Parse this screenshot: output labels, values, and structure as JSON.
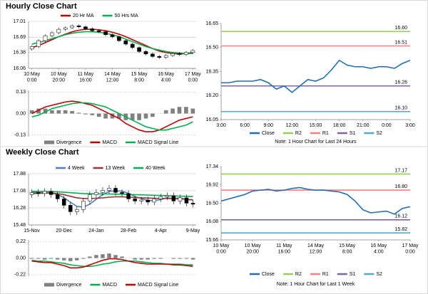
{
  "sections": [
    "Hourly Close Chart",
    "Weekly Close Chart"
  ],
  "chart_data": [
    {
      "type": "candlestick",
      "grid": true,
      "categories": [
        [
          "10 May",
          "0:00"
        ],
        null,
        null,
        null,
        [
          "10 May",
          "20:00"
        ],
        null,
        null,
        null,
        [
          "11 May",
          "16:00"
        ],
        null,
        null,
        null,
        [
          "14 May",
          "12:00"
        ],
        null,
        null,
        null,
        [
          "15 May",
          "8:00"
        ],
        null,
        null,
        null,
        [
          "16 May",
          "4:00"
        ],
        null,
        null,
        null,
        [
          "17 May",
          "0:00"
        ]
      ],
      "open": [
        16.45,
        16.5,
        16.62,
        16.72,
        16.78,
        16.85,
        16.88,
        16.92,
        16.9,
        16.86,
        16.82,
        16.8,
        16.74,
        16.7,
        16.62,
        16.55,
        16.48,
        16.4,
        16.35,
        16.3,
        16.28,
        16.32,
        16.36,
        16.34,
        16.38
      ],
      "high": [
        16.53,
        16.65,
        16.75,
        16.81,
        16.88,
        16.91,
        16.95,
        16.95,
        16.93,
        16.89,
        16.85,
        16.83,
        16.77,
        16.73,
        16.65,
        16.58,
        16.51,
        16.43,
        16.38,
        16.33,
        16.35,
        16.39,
        16.39,
        16.41,
        16.45
      ],
      "low": [
        16.42,
        16.47,
        16.59,
        16.69,
        16.75,
        16.82,
        16.85,
        16.87,
        16.83,
        16.79,
        16.77,
        16.71,
        16.67,
        16.59,
        16.52,
        16.45,
        16.37,
        16.32,
        16.27,
        16.25,
        16.25,
        16.29,
        16.31,
        16.31,
        16.35
      ],
      "close": [
        16.5,
        16.62,
        16.72,
        16.78,
        16.85,
        16.88,
        16.92,
        16.9,
        16.86,
        16.82,
        16.8,
        16.74,
        16.7,
        16.62,
        16.55,
        16.48,
        16.4,
        16.35,
        16.3,
        16.28,
        16.32,
        16.36,
        16.34,
        16.38,
        16.42
      ],
      "series": [
        {
          "name": "20 Hr MA",
          "color": "#c00000",
          "values": [
            16.48,
            16.52,
            16.58,
            16.64,
            16.7,
            16.75,
            16.8,
            16.83,
            16.85,
            16.85,
            16.84,
            16.82,
            16.79,
            16.75,
            16.7,
            16.64,
            16.58,
            16.52,
            16.46,
            16.41,
            16.38,
            16.36,
            16.35,
            16.36,
            16.38
          ]
        },
        {
          "name": "50 Hrs MA",
          "color": "#00b050",
          "values": [
            16.55,
            16.58,
            16.62,
            16.66,
            16.7,
            16.74,
            16.77,
            16.79,
            16.8,
            16.8,
            16.79,
            16.77,
            16.74,
            16.7,
            16.65,
            16.6,
            16.55,
            16.5,
            16.46,
            16.43,
            16.4,
            16.38,
            16.37,
            16.36,
            16.36
          ]
        }
      ],
      "ylim": [
        16.06,
        17.01
      ],
      "yticks": [
        16.06,
        16.38,
        16.69,
        17.01
      ]
    },
    {
      "type": "macd",
      "grid": true,
      "series": [
        {
          "name": "Divergence",
          "color": "#808080",
          "kind": "bar",
          "values": [
            0.02,
            0.03,
            0.03,
            0.02,
            0.02,
            0.02,
            0.015,
            0.005,
            -0.005,
            -0.01,
            -0.02,
            -0.03,
            -0.03,
            -0.03,
            -0.04,
            -0.04,
            -0.04,
            -0.03,
            -0.02,
            0,
            0.02,
            0.03,
            0.04,
            0.04,
            0.03
          ]
        },
        {
          "name": "MACD",
          "color": "#c00000",
          "kind": "line",
          "values": [
            0,
            0.02,
            0.04,
            0.05,
            0.06,
            0.07,
            0.075,
            0.07,
            0.06,
            0.05,
            0.03,
            0.01,
            -0.01,
            -0.03,
            -0.06,
            -0.08,
            -0.1,
            -0.11,
            -0.11,
            -0.1,
            -0.08,
            -0.06,
            -0.04,
            -0.03,
            -0.02
          ]
        },
        {
          "name": "MACD Signal Line",
          "color": "#00b050",
          "kind": "line",
          "values": [
            -0.02,
            -0.01,
            0.01,
            0.03,
            0.04,
            0.05,
            0.06,
            0.065,
            0.065,
            0.06,
            0.05,
            0.04,
            0.02,
            0,
            -0.02,
            -0.04,
            -0.06,
            -0.08,
            -0.09,
            -0.1,
            -0.1,
            -0.09,
            -0.08,
            -0.07,
            -0.05
          ]
        }
      ],
      "ylim": [
        -0.14,
        0.14
      ],
      "yticks": [
        0.13,
        {
          "value": 0,
          "label": "0.00"
        },
        -0.13
      ]
    },
    {
      "type": "line",
      "grid": false,
      "categories": [
        "3:00",
        null,
        null,
        "6:00",
        null,
        null,
        "9:00",
        null,
        null,
        "12:00",
        null,
        null,
        "15:00",
        null,
        null,
        "18:00",
        null,
        null,
        "21:00",
        null,
        null,
        "0:00",
        null,
        null,
        "3:00"
      ],
      "series": [
        {
          "name": "Close",
          "color": "#1f6fb5",
          "values": [
            16.28,
            16.28,
            16.29,
            16.29,
            16.29,
            16.3,
            16.28,
            16.24,
            16.26,
            16.22,
            16.26,
            16.3,
            16.29,
            16.31,
            16.36,
            16.42,
            16.39,
            16.38,
            16.38,
            16.37,
            16.38,
            16.38,
            16.37,
            16.4,
            16.42
          ]
        }
      ],
      "levels": [
        {
          "name": "R2",
          "color": "#92d050",
          "value": 16.6,
          "label": "16.60"
        },
        {
          "name": "R1",
          "color": "#ff7c80",
          "value": 16.51,
          "label": "16.51"
        },
        {
          "name": "S1",
          "color": "#8064a2",
          "value": 16.26,
          "label": "16.26"
        },
        {
          "name": "S2",
          "color": "#4bacc6",
          "value": 16.1,
          "label": "16.10"
        }
      ],
      "note": "Note: 1 Hour Chart for Last 24 Hours",
      "ylim": [
        16.05,
        16.65
      ],
      "yticks": [
        16.05,
        {
          "value": 16.2,
          "label": "16.20"
        },
        16.35,
        {
          "value": 16.5,
          "label": "16.50"
        },
        16.65
      ]
    },
    {
      "type": "candlestick",
      "grid": true,
      "categories": [
        "15-Nov",
        null,
        null,
        null,
        null,
        "20-Dec",
        null,
        null,
        null,
        null,
        "24-Jan",
        null,
        null,
        null,
        null,
        "28-Feb",
        null,
        null,
        null,
        null,
        "4-Apr",
        null,
        null,
        null,
        null,
        "9-May"
      ],
      "open": [
        16.9,
        17.0,
        16.95,
        17.05,
        16.9,
        16.7,
        16.4,
        16.1,
        16.2,
        16.6,
        16.9,
        17.0,
        17.1,
        17.2,
        17.0,
        16.95,
        16.7,
        16.6,
        16.65,
        16.55,
        16.7,
        16.8,
        16.85,
        16.6,
        16.75,
        16.5
      ],
      "high": [
        17.15,
        17.15,
        17.2,
        17.2,
        17.05,
        16.85,
        16.55,
        16.35,
        16.75,
        17.05,
        17.15,
        17.25,
        17.35,
        17.35,
        17.15,
        17.1,
        16.85,
        16.8,
        16.8,
        16.85,
        16.95,
        17.0,
        17.0,
        16.9,
        16.9,
        16.65
      ],
      "low": [
        16.75,
        16.8,
        16.8,
        16.75,
        16.55,
        16.25,
        15.95,
        15.95,
        16.05,
        16.45,
        16.75,
        16.85,
        16.95,
        16.85,
        16.8,
        16.55,
        16.45,
        16.45,
        16.4,
        16.4,
        16.55,
        16.65,
        16.45,
        16.45,
        16.35,
        16.3
      ],
      "close": [
        17.0,
        16.95,
        17.05,
        16.9,
        16.7,
        16.4,
        16.1,
        16.2,
        16.6,
        16.9,
        17.0,
        17.1,
        17.2,
        17.0,
        16.95,
        16.7,
        16.6,
        16.65,
        16.55,
        16.7,
        16.8,
        16.85,
        16.6,
        16.75,
        16.5,
        16.45
      ],
      "series": [
        {
          "name": "4 Week",
          "color": "#4f81bd",
          "values": [
            17.02,
            17.0,
            16.98,
            16.98,
            16.9,
            16.76,
            16.54,
            16.35,
            16.32,
            16.45,
            16.68,
            16.9,
            17.05,
            17.08,
            17.06,
            16.96,
            16.81,
            16.72,
            16.62,
            16.62,
            16.67,
            16.75,
            16.72,
            16.75,
            16.67,
            16.65
          ]
        },
        {
          "name": "13 Week",
          "color": "#963634",
          "values": [
            16.95,
            16.96,
            16.97,
            16.97,
            16.95,
            16.9,
            16.82,
            16.75,
            16.72,
            16.72,
            16.73,
            16.75,
            16.78,
            16.8,
            16.8,
            16.78,
            16.76,
            16.75,
            16.74,
            16.73,
            16.72,
            16.72,
            16.71,
            16.7,
            16.68,
            16.66
          ]
        },
        {
          "name": "40 Week",
          "color": "#00b050",
          "values": [
            17.05,
            17.05,
            17.04,
            17.04,
            17.03,
            17.01,
            16.99,
            16.97,
            16.95,
            16.94,
            16.94,
            16.93,
            16.93,
            16.92,
            16.92,
            16.91,
            16.9,
            16.89,
            16.88,
            16.87,
            16.86,
            16.85,
            16.84,
            16.83,
            16.82,
            16.81
          ]
        }
      ],
      "ylim": [
        15.48,
        17.88
      ],
      "yticks": [
        15.48,
        16.28,
        17.08,
        17.88
      ]
    },
    {
      "type": "macd",
      "grid": true,
      "series": [
        {
          "name": "Divergence",
          "color": "#808080",
          "kind": "bar",
          "values": [
            -0.01,
            -0.01,
            -0.02,
            -0.01,
            -0.02,
            -0.03,
            -0.04,
            -0.03,
            -0.01,
            0.02,
            0.04,
            0.05,
            0.06,
            0.04,
            0.02,
            0,
            -0.02,
            -0.02,
            -0.02,
            -0.01,
            -0.01,
            0,
            -0.01,
            -0.01,
            -0.01,
            -0.02
          ]
        },
        {
          "name": "MACD",
          "color": "#00b050",
          "kind": "line",
          "values": [
            -0.03,
            -0.04,
            -0.04,
            -0.05,
            -0.06,
            -0.07,
            -0.09,
            -0.1,
            -0.11,
            -0.11,
            -0.1,
            -0.08,
            -0.07,
            -0.05,
            -0.04,
            -0.04,
            -0.04,
            -0.05,
            -0.06,
            -0.07,
            -0.07,
            -0.08,
            -0.08,
            -0.08,
            -0.09,
            -0.09
          ]
        },
        {
          "name": "MACD Signal Line",
          "color": "#c00000",
          "kind": "line",
          "values": [
            -0.04,
            -0.05,
            -0.06,
            -0.06,
            -0.08,
            -0.1,
            -0.13,
            -0.13,
            -0.12,
            -0.09,
            -0.06,
            -0.03,
            -0.01,
            -0.01,
            -0.02,
            -0.04,
            -0.06,
            -0.07,
            -0.08,
            -0.08,
            -0.08,
            -0.08,
            -0.09,
            -0.09,
            -0.1,
            -0.11
          ]
        }
      ],
      "ylim": [
        -0.24,
        0.24
      ],
      "yticks": [
        0.22,
        {
          "value": 0,
          "label": "0.00"
        },
        -0.22
      ]
    },
    {
      "type": "line",
      "grid": false,
      "categories": [
        [
          "10 May",
          "0:00"
        ],
        null,
        null,
        null,
        [
          "10 May",
          "20:00"
        ],
        null,
        null,
        null,
        [
          "11 May",
          "16:00"
        ],
        null,
        null,
        null,
        [
          "14 May",
          "12:00"
        ],
        null,
        null,
        null,
        [
          "15 May",
          "8:00"
        ],
        null,
        null,
        null,
        [
          "16 May",
          "4:00"
        ],
        null,
        null,
        null,
        [
          "17 May",
          "0:00"
        ]
      ],
      "series": [
        {
          "name": "Close",
          "color": "#1f6fb5",
          "values": [
            16.55,
            16.6,
            16.65,
            16.7,
            16.78,
            16.8,
            16.82,
            16.78,
            16.8,
            16.84,
            16.86,
            16.82,
            16.8,
            16.8,
            16.78,
            16.76,
            16.7,
            16.55,
            16.35,
            16.28,
            16.3,
            16.32,
            16.25,
            16.38,
            16.42
          ]
        }
      ],
      "levels": [
        {
          "name": "R2",
          "color": "#92d050",
          "value": 17.17,
          "label": "17.17"
        },
        {
          "name": "R1",
          "color": "#ff7c80",
          "value": 16.8,
          "label": "16.80"
        },
        {
          "name": "S1",
          "color": "#8064a2",
          "value": 16.12,
          "label": "16.12"
        },
        {
          "name": "S2",
          "color": "#4bacc6",
          "value": 15.82,
          "label": "15.82"
        }
      ],
      "note": "Note: 1 Hour Chart for Last 1 Week",
      "ylim": [
        15.66,
        17.34
      ],
      "yticks": [
        15.66,
        16.08,
        {
          "value": 16.5,
          "label": "16.50"
        },
        16.92,
        17.34
      ]
    }
  ]
}
